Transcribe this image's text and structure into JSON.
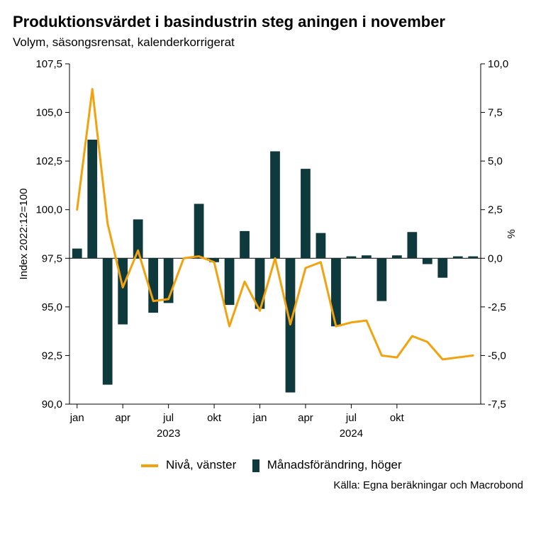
{
  "title": "Produktionsvärdet i basindustrin steg aningen i november",
  "subtitle": "Volym, säsongsrensat, kalenderkorrigerat",
  "chart": {
    "type": "bar+line",
    "background_color": "#ffffff",
    "axis_color": "#000000",
    "grid_color": "#000000",
    "left_axis": {
      "title": "Index 2022:12=100",
      "min": 90.0,
      "max": 107.5,
      "tick_step": 2.5,
      "ticks": [
        "90,0",
        "92,5",
        "95,0",
        "97,5",
        "100,0",
        "102,5",
        "105,0",
        "107,5"
      ],
      "title_fontsize": 15,
      "tick_fontsize": 15
    },
    "right_axis": {
      "title": "%",
      "min": -7.5,
      "max": 10.0,
      "tick_step": 2.5,
      "ticks": [
        "-7,5",
        "-5,0",
        "-2,5",
        "0,0",
        "2,5",
        "5,0",
        "7,5",
        "10,0"
      ],
      "title_fontsize": 15,
      "tick_fontsize": 15
    },
    "x_axis": {
      "month_labels": [
        {
          "text": "jan",
          "at_index": 0
        },
        {
          "text": "apr",
          "at_index": 3
        },
        {
          "text": "jul",
          "at_index": 6
        },
        {
          "text": "okt",
          "at_index": 9
        },
        {
          "text": "jan",
          "at_index": 12
        },
        {
          "text": "apr",
          "at_index": 15
        },
        {
          "text": "jul",
          "at_index": 18
        },
        {
          "text": "okt",
          "at_index": 21
        }
      ],
      "year_labels": [
        {
          "text": "2023",
          "center_index": 6
        },
        {
          "text": "2024",
          "center_index": 18
        }
      ],
      "label_fontsize": 15
    },
    "series_bar": {
      "name": "Månadsförändring, höger",
      "axis": "right",
      "color": "#0f3a3d",
      "bar_width_ratio": 0.64,
      "values": [
        0.5,
        6.1,
        -6.5,
        -3.4,
        2.0,
        -2.8,
        -2.3,
        0.0,
        2.8,
        -0.2,
        -2.4,
        1.4,
        -2.6,
        5.5,
        -6.9,
        4.6,
        1.3,
        -3.5,
        0.1,
        0.15,
        -2.2,
        0.15,
        1.35,
        -0.3,
        -1.0,
        0.1,
        0.1
      ]
    },
    "series_line": {
      "name": "Nivå, vänster",
      "axis": "left",
      "color": "#f2a20e",
      "line_width": 3,
      "values": [
        100.0,
        106.2,
        99.3,
        96.0,
        97.9,
        95.3,
        95.4,
        97.5,
        97.6,
        97.3,
        94.0,
        96.3,
        94.8,
        97.5,
        94.1,
        97.0,
        97.3,
        94.0,
        94.2,
        94.3,
        92.5,
        92.4,
        93.5,
        93.2,
        92.3,
        92.4,
        92.5
      ]
    },
    "legend": {
      "line_label": "Nivå, vänster",
      "bar_label": "Månadsförändring, höger",
      "fontsize": 17
    }
  },
  "source": "Källa: Egna beräkningar och Macrobond"
}
